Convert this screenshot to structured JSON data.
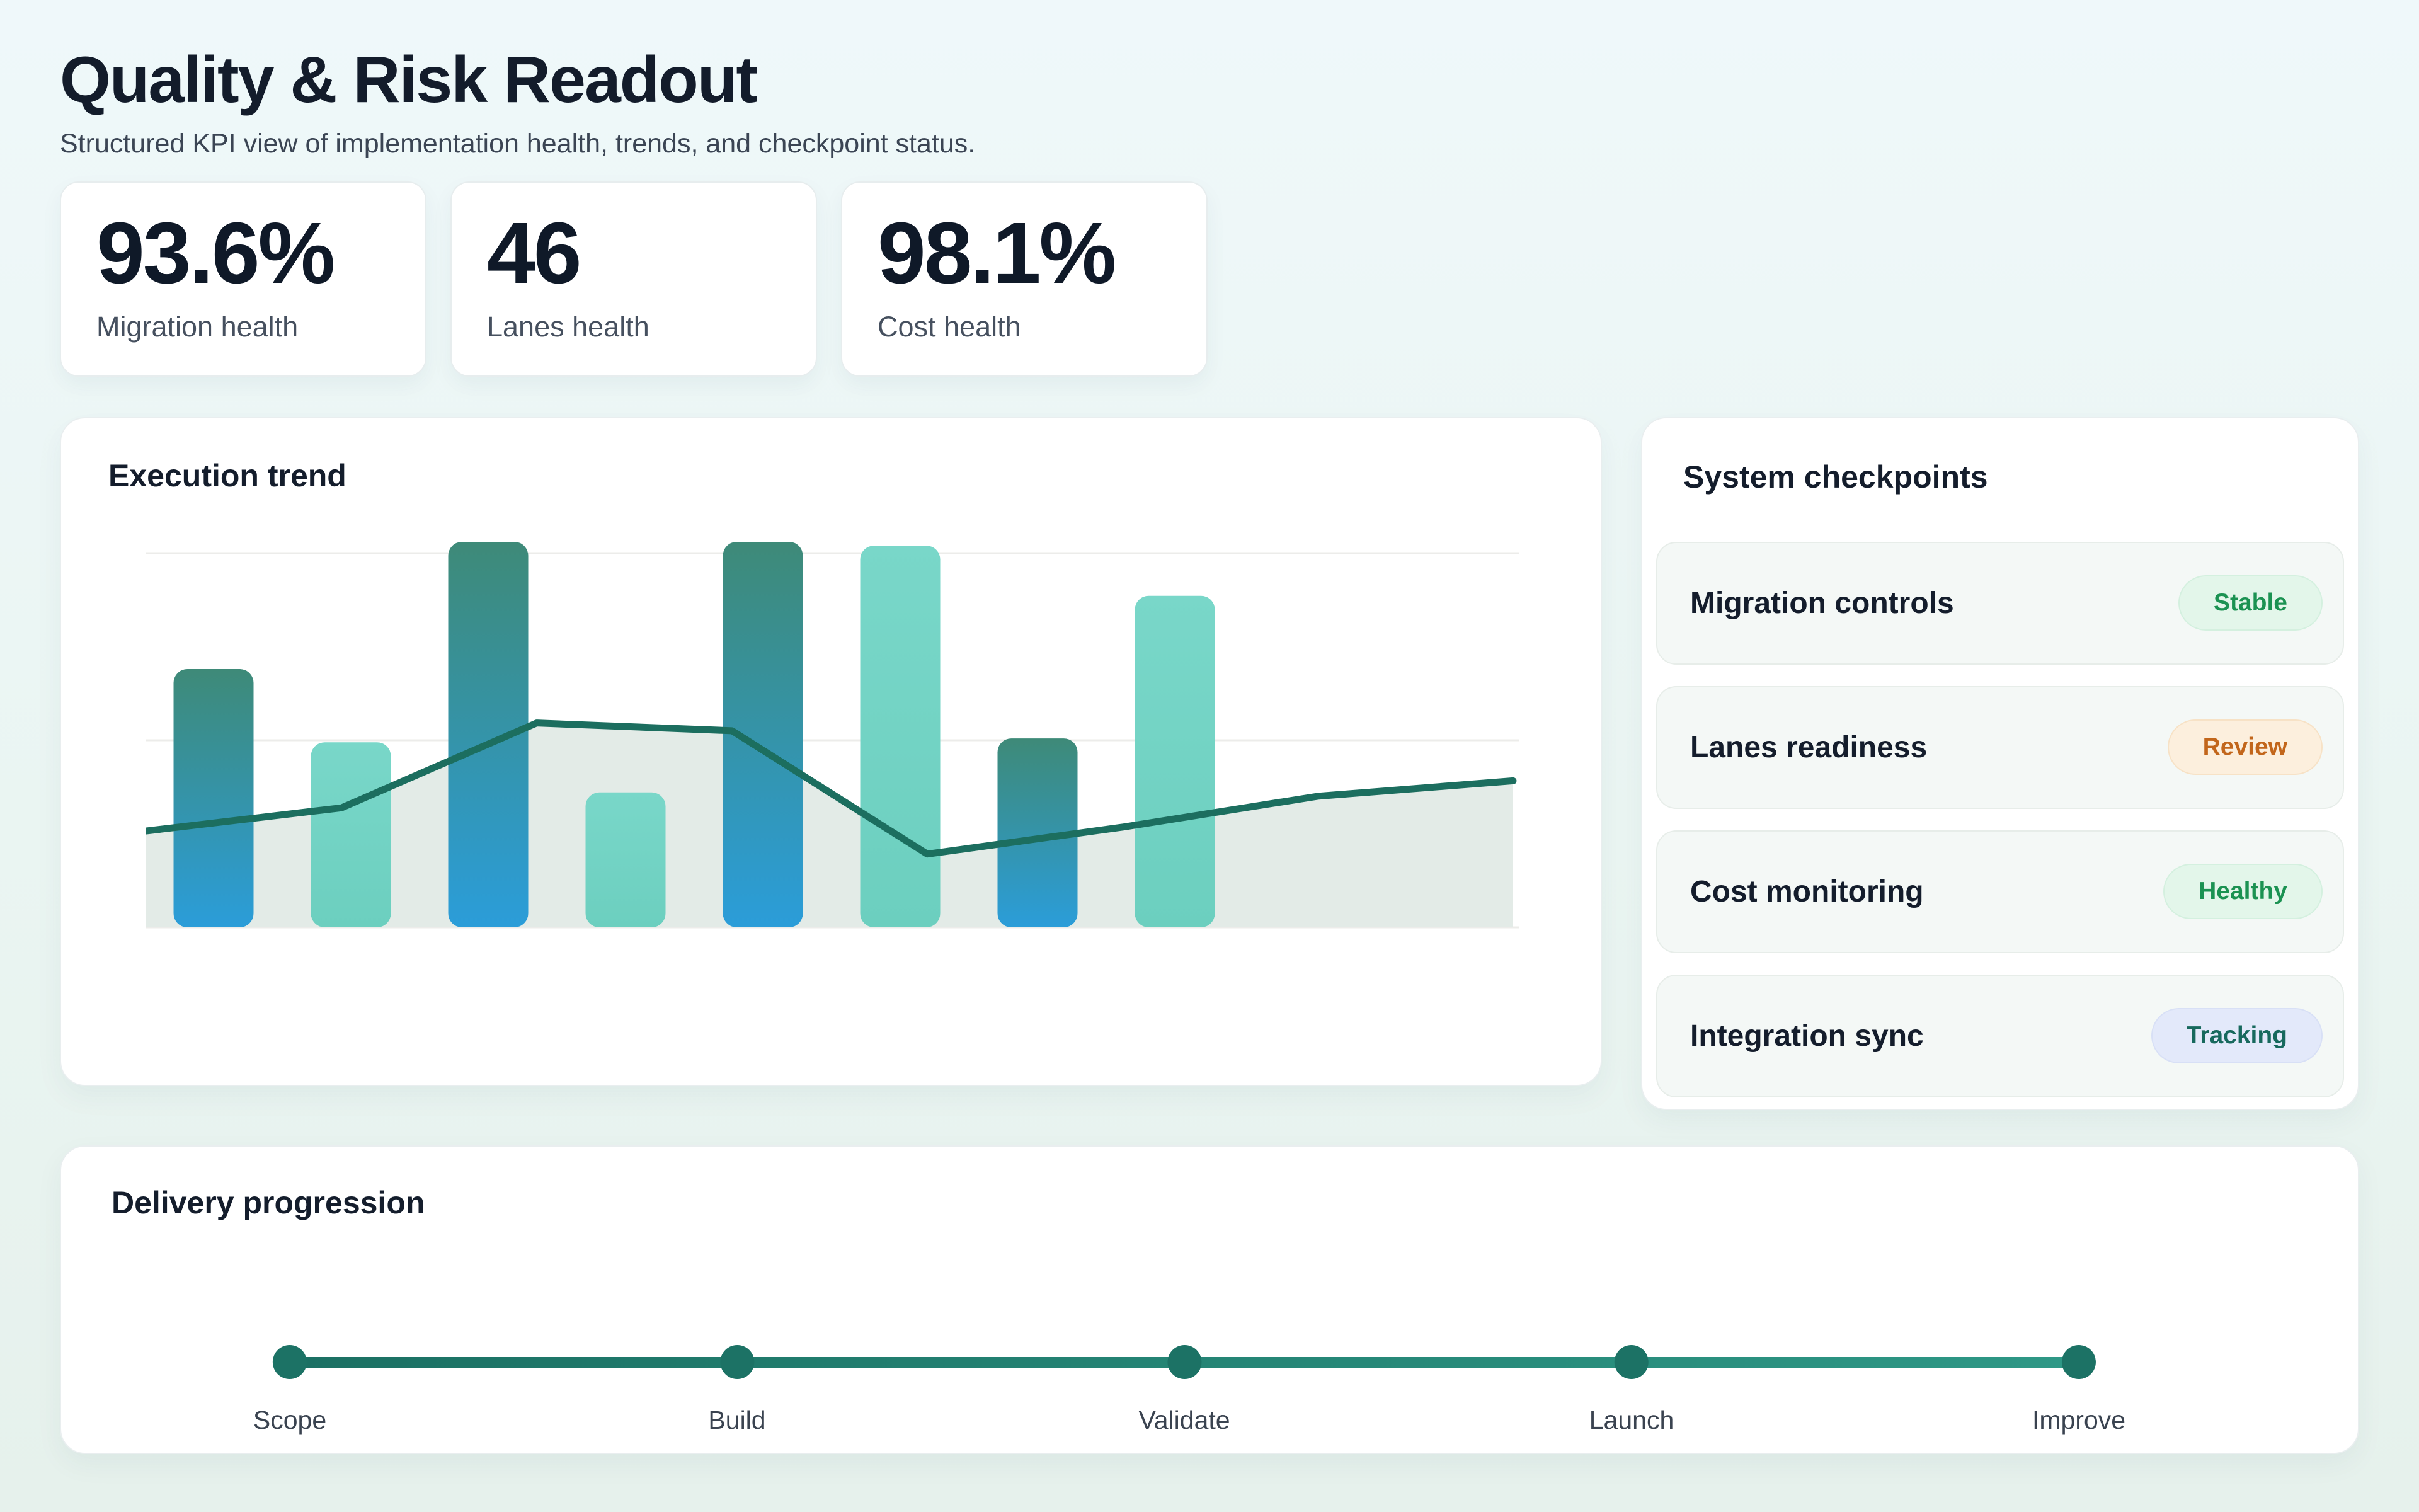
{
  "header": {
    "title": "Quality & Risk Readout",
    "subtitle": "Structured KPI view of implementation health, trends, and checkpoint status."
  },
  "kpis": [
    {
      "value": "93.6%",
      "label": "Migration health"
    },
    {
      "value": "46",
      "label": "Lanes health"
    },
    {
      "value": "98.1%",
      "label": "Cost health"
    }
  ],
  "chart_data": {
    "type": "bar",
    "title": "Execution trend",
    "x": [
      1,
      2,
      3,
      4,
      5,
      6,
      7,
      8
    ],
    "series": [
      {
        "name": "execution-bars",
        "type": "bar",
        "values": [
          67,
          48,
          100,
          35,
          100,
          99,
          49,
          86
        ]
      },
      {
        "name": "execution-trend",
        "type": "line-area",
        "values": [
          25,
          31,
          53,
          51,
          19,
          26,
          34,
          38
        ]
      }
    ],
    "ylim": [
      0,
      100
    ],
    "xlabel": "",
    "ylabel": "",
    "gridlines": 3,
    "legend_position": "none",
    "bar_style": "alternating teal-to-blue gradient and mint solid, rounded ends"
  },
  "checkpoints": {
    "title": "System checkpoints",
    "items": [
      {
        "label": "Migration controls",
        "status": "Stable",
        "tone": "green"
      },
      {
        "label": "Lanes readiness",
        "status": "Review",
        "tone": "orange"
      },
      {
        "label": "Cost monitoring",
        "status": "Healthy",
        "tone": "green"
      },
      {
        "label": "Integration sync",
        "status": "Tracking",
        "tone": "blue"
      }
    ]
  },
  "delivery": {
    "title": "Delivery progression",
    "milestones": [
      "Scope",
      "Build",
      "Validate",
      "Launch",
      "Improve"
    ]
  },
  "colors": {
    "page_bg_top": "#EFF8FA",
    "page_bg_bottom": "#E6F1EC",
    "card_bg": "#FFFFFF",
    "heading_text": "#131C2B",
    "muted_text": "#3B4554",
    "kpi_label_text": "#46505F",
    "bar_dark_top": "#3E8A78",
    "bar_dark_bottom": "#2B9DD9",
    "bar_light_top": "#79D7C9",
    "bar_light_bottom": "#6CCFBF",
    "trend_line": "#1C6E5F",
    "trend_area": "#E3EBE7",
    "grid_line": "#ECECEA",
    "timeline_start": "#1B7063",
    "timeline_end": "#2E9886",
    "timeline_dot": "#1C7265",
    "status_green_text": "#1B9252",
    "status_green_bg": "#E3F6EA",
    "status_orange_text": "#C2661B",
    "status_orange_bg": "#FCEFDD",
    "status_blue_text": "#17695D",
    "status_blue_bg": "#E3E9FA"
  }
}
